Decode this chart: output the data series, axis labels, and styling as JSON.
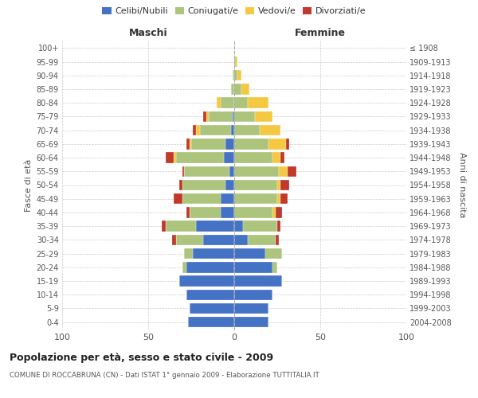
{
  "age_groups": [
    "0-4",
    "5-9",
    "10-14",
    "15-19",
    "20-24",
    "25-29",
    "30-34",
    "35-39",
    "40-44",
    "45-49",
    "50-54",
    "55-59",
    "60-64",
    "65-69",
    "70-74",
    "75-79",
    "80-84",
    "85-89",
    "90-94",
    "95-99",
    "100+"
  ],
  "birth_years": [
    "2004-2008",
    "1999-2003",
    "1994-1998",
    "1989-1993",
    "1984-1988",
    "1979-1983",
    "1974-1978",
    "1969-1973",
    "1964-1968",
    "1959-1963",
    "1954-1958",
    "1949-1953",
    "1944-1948",
    "1939-1943",
    "1934-1938",
    "1929-1933",
    "1924-1928",
    "1919-1923",
    "1914-1918",
    "1909-1913",
    "≤ 1908"
  ],
  "males": {
    "celibi": [
      27,
      26,
      28,
      32,
      28,
      24,
      18,
      22,
      8,
      8,
      5,
      3,
      6,
      5,
      2,
      1,
      0,
      0,
      0,
      0,
      0
    ],
    "coniugati": [
      0,
      0,
      0,
      0,
      2,
      5,
      16,
      18,
      18,
      22,
      25,
      26,
      28,
      20,
      18,
      14,
      8,
      2,
      1,
      0,
      0
    ],
    "vedovi": [
      0,
      0,
      0,
      0,
      0,
      0,
      0,
      0,
      0,
      0,
      0,
      0,
      1,
      1,
      2,
      1,
      2,
      0,
      0,
      0,
      0
    ],
    "divorziati": [
      0,
      0,
      0,
      0,
      0,
      0,
      2,
      2,
      2,
      5,
      2,
      1,
      5,
      2,
      2,
      2,
      0,
      0,
      0,
      0,
      0
    ]
  },
  "females": {
    "nubili": [
      20,
      20,
      22,
      28,
      22,
      18,
      8,
      5,
      0,
      0,
      0,
      0,
      0,
      0,
      0,
      0,
      0,
      0,
      0,
      0,
      0
    ],
    "coniugate": [
      0,
      0,
      0,
      0,
      3,
      10,
      16,
      20,
      22,
      25,
      25,
      26,
      22,
      20,
      15,
      12,
      8,
      4,
      2,
      1,
      0
    ],
    "vedove": [
      0,
      0,
      0,
      0,
      0,
      0,
      0,
      0,
      2,
      2,
      2,
      5,
      5,
      10,
      12,
      10,
      12,
      5,
      2,
      1,
      0
    ],
    "divorziate": [
      0,
      0,
      0,
      0,
      0,
      0,
      2,
      2,
      4,
      4,
      5,
      5,
      2,
      2,
      0,
      0,
      0,
      0,
      0,
      0,
      0
    ]
  },
  "colors": {
    "celibi_nubili": "#4472c4",
    "coniugati": "#adc47c",
    "vedovi": "#f5c842",
    "divorziati": "#c0392b"
  },
  "xlim": 100,
  "title": "Popolazione per età, sesso e stato civile - 2009",
  "subtitle": "COMUNE DI ROCCABRUNA (CN) - Dati ISTAT 1° gennaio 2009 - Elaborazione TUTTITALIA.IT",
  "ylabel_left": "Fasce di età",
  "ylabel_right": "Anni di nascita",
  "xlabel_left": "Maschi",
  "xlabel_right": "Femmine",
  "bg_color": "#ffffff",
  "grid_color": "#cccccc"
}
